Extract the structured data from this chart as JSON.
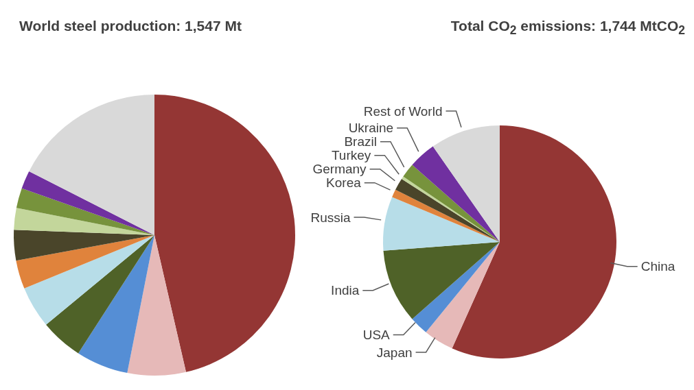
{
  "chart_data": [
    {
      "type": "pie",
      "title": "World steel production:  1,547 Mt",
      "categories": [
        null,
        null,
        null,
        null,
        null,
        null,
        null,
        null,
        null,
        null,
        null
      ],
      "values": [
        46.4,
        6.7,
        6.0,
        4.9,
        4.8,
        3.3,
        3.5,
        2.5,
        2.3,
        2.1,
        17.5
      ],
      "colors": [
        "#943634",
        "#e6b9b8",
        "#558ed5",
        "#4f6228",
        "#b7dde8",
        "#e0833c",
        "#4a452a",
        "#c3d69b",
        "#77933c",
        "#7030a0",
        "#d9d9d9"
      ]
    },
    {
      "type": "pie",
      "title": "Total CO$_{2}$ emissions:  1,744 MtCO$_{2}$",
      "categories": [
        "China",
        "Japan",
        "USA",
        "India",
        "Russia",
        "Korea",
        "Germany",
        "Turkey",
        "Brazil",
        "Ukraine",
        "Rest of World"
      ],
      "values": [
        56.7,
        4.2,
        2.6,
        10.3,
        7.5,
        1.1,
        1.7,
        0.4,
        2.0,
        3.8,
        9.7
      ],
      "colors": [
        "#943634",
        "#e6b9b8",
        "#558ed5",
        "#4f6228",
        "#b7dde8",
        "#e0833c",
        "#4a452a",
        "#c3d69b",
        "#77933c",
        "#7030a0",
        "#d9d9d9"
      ]
    }
  ]
}
